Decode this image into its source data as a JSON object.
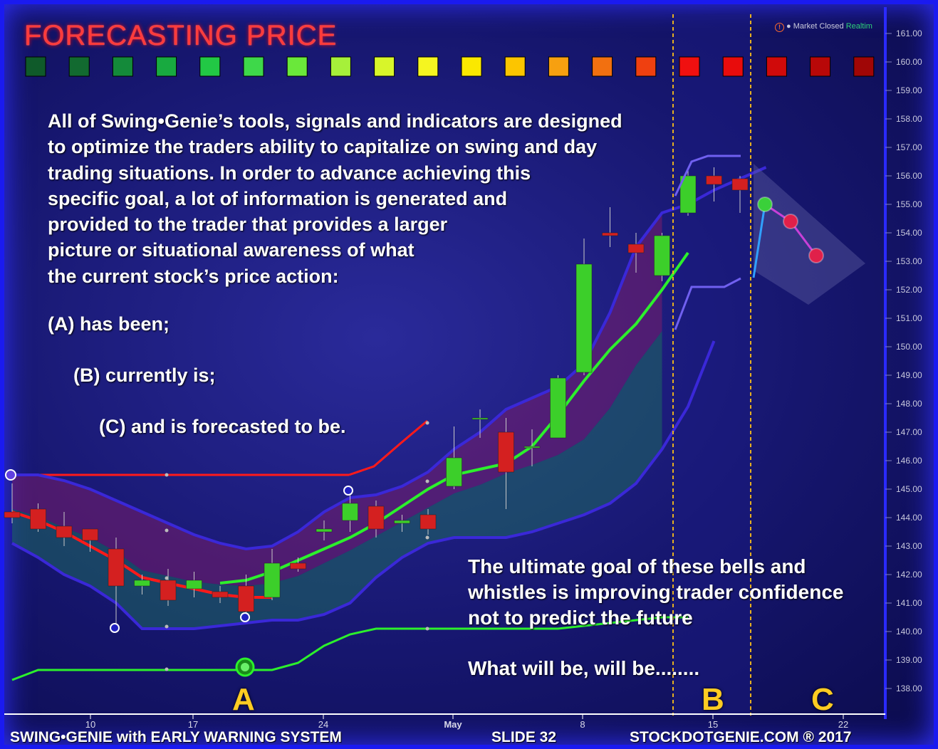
{
  "title": "FORECASTING PRICE",
  "market_status": {
    "icon": "warning-icon",
    "text": "Market Closed",
    "realtime": "Realtim"
  },
  "heat_scale": [
    "#0f5a2a",
    "#126a30",
    "#148a3a",
    "#18aa40",
    "#22c845",
    "#3ed84a",
    "#6ae83a",
    "#a6f03a",
    "#d8f52a",
    "#f5f520",
    "#fae800",
    "#fcc500",
    "#f7a010",
    "#f27010",
    "#ef4010",
    "#f01010",
    "#e80c0c",
    "#d00a0a",
    "#b80808",
    "#a00606"
  ],
  "intro_lines": [
    "All of Swing•Genie’s tools, signals and indicators are designed",
    "to optimize the traders ability to capitalize on swing and day",
    "trading situations.  In order to advance achieving this",
    "specific goal, a lot of information is generated and",
    "provided to the trader that provides a larger",
    "picture or situational awareness of what",
    "the current stock’s price action:"
  ],
  "list": {
    "a": "(A)  has been;",
    "b": "(B) currently is;",
    "c": "(C) and is forecasted to be."
  },
  "goal_lines": [
    "The ultimate goal of these bells and",
    "whistles is improving trader confidence",
    "not to predict the future"
  ],
  "closing": "What will be, will be........",
  "labels": {
    "a": "A",
    "b": "B",
    "c": "C"
  },
  "footer": {
    "left": "SWING•GENIE with  EARLY WARNING SYSTEM",
    "slide": "SLIDE 32",
    "right": "STOCKDOTGENIE.COM ® 2017"
  },
  "colors": {
    "up": "#3ccf2a",
    "down": "#d42020",
    "upper_band": "#3a28d8",
    "red_line": "#ff1a1a",
    "green_line": "#2cf02c",
    "section_marker": "#e6b020"
  },
  "chart_data": {
    "type": "candlestick",
    "y_axis": {
      "min": 137.5,
      "max": 161.5,
      "ticks": [
        "161.00",
        "160.00",
        "159.00",
        "158.00",
        "157.00",
        "156.00",
        "155.00",
        "154.00",
        "153.00",
        "152.00",
        "151.00",
        "150.00",
        "149.00",
        "148.00",
        "147.00",
        "146.00",
        "145.00",
        "144.00",
        "143.00",
        "142.00",
        "141.00",
        "140.00",
        "139.00",
        "138.00"
      ]
    },
    "x_axis": {
      "ticks": [
        "10",
        "24",
        "May",
        "8",
        "15",
        "22",
        "17"
      ]
    },
    "candles": [
      {
        "i": 0,
        "o": 144.2,
        "c": 144.0,
        "h": 145.2,
        "l": 143.8
      },
      {
        "i": 1,
        "o": 144.3,
        "c": 143.6,
        "h": 144.5,
        "l": 143.5
      },
      {
        "i": 2,
        "o": 143.7,
        "c": 143.3,
        "h": 144.2,
        "l": 143.0
      },
      {
        "i": 3,
        "o": 143.6,
        "c": 143.2,
        "h": 143.6,
        "l": 142.8
      },
      {
        "i": 4,
        "o": 142.9,
        "c": 141.6,
        "h": 143.3,
        "l": 140.1
      },
      {
        "i": 5,
        "o": 141.6,
        "c": 141.8,
        "h": 142.0,
        "l": 141.3
      },
      {
        "i": 6,
        "o": 141.8,
        "c": 141.1,
        "h": 142.2,
        "l": 140.9
      },
      {
        "i": 7,
        "o": 141.5,
        "c": 141.8,
        "h": 142.1,
        "l": 141.2
      },
      {
        "i": 8,
        "o": 141.4,
        "c": 141.2,
        "h": 141.6,
        "l": 141.0
      },
      {
        "i": 9,
        "o": 141.6,
        "c": 140.7,
        "h": 142.0,
        "l": 140.5
      },
      {
        "i": 10,
        "o": 141.2,
        "c": 142.4,
        "h": 142.9,
        "l": 141.1
      },
      {
        "i": 11,
        "o": 142.4,
        "c": 142.2,
        "h": 142.6,
        "l": 142.1
      },
      {
        "i": 12,
        "o": 143.5,
        "c": 143.6,
        "h": 143.9,
        "l": 143.2
      },
      {
        "i": 13,
        "o": 143.9,
        "c": 144.5,
        "h": 144.9,
        "l": 143.5
      },
      {
        "i": 14,
        "o": 144.4,
        "c": 143.6,
        "h": 144.6,
        "l": 143.3
      },
      {
        "i": 15,
        "o": 143.8,
        "c": 143.9,
        "h": 144.1,
        "l": 143.5
      },
      {
        "i": 16,
        "o": 144.1,
        "c": 143.6,
        "h": 144.3,
        "l": 143.4
      },
      {
        "i": 17,
        "o": 145.1,
        "c": 146.1,
        "h": 147.2,
        "l": 145.0
      },
      {
        "i": 18,
        "o": 147.5,
        "c": 147.5,
        "h": 147.8,
        "l": 146.8
      },
      {
        "i": 19,
        "o": 147.0,
        "c": 145.6,
        "h": 147.5,
        "l": 144.3
      },
      {
        "i": 20,
        "o": 146.5,
        "c": 146.5,
        "h": 147.1,
        "l": 145.8
      },
      {
        "i": 21,
        "o": 146.8,
        "c": 148.9,
        "h": 149.0,
        "l": 146.8
      },
      {
        "i": 22,
        "o": 149.1,
        "c": 152.9,
        "h": 153.8,
        "l": 149.0
      },
      {
        "i": 23,
        "o": 154.0,
        "c": 153.9,
        "h": 154.9,
        "l": 153.5
      },
      {
        "i": 24,
        "o": 153.6,
        "c": 153.3,
        "h": 154.0,
        "l": 152.6
      },
      {
        "i": 25,
        "o": 152.5,
        "c": 153.9,
        "h": 154.0,
        "l": 152.3
      },
      {
        "i": 26,
        "o": 154.7,
        "c": 156.0,
        "h": 156.2,
        "l": 154.6
      },
      {
        "i": 27,
        "o": 156.0,
        "c": 155.7,
        "h": 156.3,
        "l": 155.1
      },
      {
        "i": 28,
        "o": 155.9,
        "c": 155.5,
        "h": 156.0,
        "l": 154.7
      }
    ],
    "upper_band": [
      145.5,
      145.5,
      145.3,
      145.0,
      144.6,
      144.2,
      143.8,
      143.4,
      143.1,
      142.9,
      143.0,
      143.5,
      144.2,
      144.7,
      144.8,
      145.1,
      145.6,
      146.4,
      147.0,
      147.8,
      148.2,
      148.6,
      149.4,
      151.2,
      153.5,
      154.7,
      155.0,
      155.5,
      155.9,
      156.3
    ],
    "lower_band": [
      143.1,
      142.6,
      142.0,
      141.6,
      141.0,
      140.1,
      140.1,
      140.1,
      140.2,
      140.3,
      140.4,
      140.4,
      140.6,
      141.0,
      141.9,
      142.6,
      143.1,
      143.3,
      143.3,
      143.3,
      143.5,
      143.8,
      144.1,
      144.5,
      145.2,
      146.4,
      147.9,
      150.2
    ],
    "red_line": [
      144.2,
      143.9,
      143.5,
      143.0,
      142.5,
      141.9,
      141.7,
      141.5,
      141.3,
      141.2,
      141.2
    ],
    "green_line": [
      141.7,
      141.8,
      142.1,
      142.5,
      142.9,
      143.3,
      143.8,
      144.4,
      145.0,
      145.5,
      145.7,
      145.9,
      146.5,
      147.6,
      148.8,
      149.9,
      150.8,
      152.0,
      153.3
    ],
    "red_resistance": 145.5,
    "green_support": [
      138.3,
      138.65,
      138.65,
      138.65,
      138.65,
      138.65,
      138.65,
      138.65,
      138.65,
      138.65,
      138.65,
      138.9,
      139.5,
      139.9,
      140.1,
      140.1,
      140.1,
      140.1,
      140.1,
      140.1,
      140.1,
      140.1,
      140.2,
      140.3,
      140.4,
      140.5,
      140.5
    ],
    "forecast_channel": {
      "upper": [
        155.3,
        156.5,
        156.7,
        156.7,
        156.7
      ],
      "lower": [
        150.6,
        152.1,
        152.1,
        152.1,
        152.4
      ]
    },
    "forecast_points": [
      155.0,
      154.4,
      153.2
    ]
  }
}
